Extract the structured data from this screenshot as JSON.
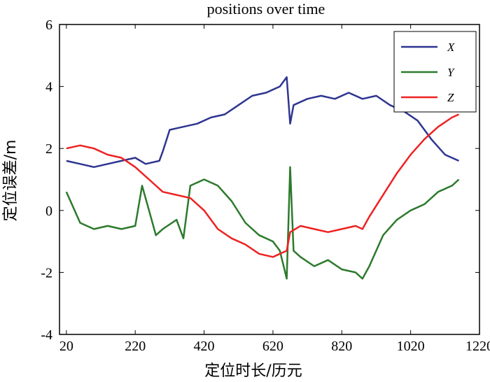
{
  "chart_data": {
    "type": "line",
    "title": "positions over time",
    "xlabel": "定位时长/历元",
    "ylabel": "定位误差/m",
    "xlim": [
      0,
      1220
    ],
    "ylim": [
      -4,
      6
    ],
    "xticks": [
      20,
      220,
      420,
      620,
      820,
      1020,
      1220
    ],
    "yticks": [
      -4,
      -2,
      0,
      2,
      4,
      6
    ],
    "legend_position": "top-right",
    "grid": false,
    "series": [
      {
        "name": "X",
        "color": "#2e3591",
        "x": [
          20,
          60,
          100,
          140,
          180,
          220,
          250,
          290,
          300,
          320,
          360,
          400,
          440,
          480,
          520,
          560,
          600,
          640,
          660,
          670,
          680,
          720,
          760,
          800,
          840,
          880,
          920,
          960,
          1000,
          1040,
          1080,
          1120,
          1160
        ],
        "y": [
          1.6,
          1.5,
          1.4,
          1.5,
          1.6,
          1.7,
          1.5,
          1.6,
          1.9,
          2.6,
          2.7,
          2.8,
          3.0,
          3.1,
          3.4,
          3.7,
          3.8,
          4.0,
          4.3,
          2.8,
          3.4,
          3.6,
          3.7,
          3.6,
          3.8,
          3.6,
          3.7,
          3.4,
          3.2,
          2.9,
          2.3,
          1.8,
          1.6
        ]
      },
      {
        "name": "Y",
        "color": "#2c7a2c",
        "x": [
          20,
          60,
          100,
          140,
          180,
          220,
          240,
          260,
          280,
          300,
          340,
          360,
          380,
          420,
          460,
          500,
          540,
          580,
          620,
          640,
          660,
          670,
          680,
          700,
          740,
          780,
          820,
          860,
          880,
          900,
          940,
          980,
          1020,
          1060,
          1100,
          1140,
          1160
        ],
        "y": [
          0.6,
          -0.4,
          -0.6,
          -0.5,
          -0.6,
          -0.5,
          0.8,
          0.0,
          -0.8,
          -0.6,
          -0.3,
          -0.9,
          0.8,
          1.0,
          0.8,
          0.3,
          -0.4,
          -0.8,
          -1.0,
          -1.3,
          -2.2,
          1.4,
          -1.3,
          -1.5,
          -1.8,
          -1.6,
          -1.9,
          -2.0,
          -2.2,
          -1.8,
          -0.8,
          -0.3,
          0.0,
          0.2,
          0.6,
          0.8,
          1.0
        ]
      },
      {
        "name": "Z",
        "color": "#ee2222",
        "x": [
          20,
          60,
          100,
          140,
          180,
          220,
          260,
          300,
          340,
          380,
          420,
          460,
          500,
          540,
          580,
          620,
          660,
          670,
          700,
          740,
          780,
          820,
          860,
          880,
          900,
          940,
          980,
          1020,
          1060,
          1100,
          1140,
          1160
        ],
        "y": [
          2.0,
          2.1,
          2.0,
          1.8,
          1.7,
          1.4,
          1.0,
          0.6,
          0.5,
          0.4,
          0.0,
          -0.6,
          -0.9,
          -1.1,
          -1.4,
          -1.5,
          -1.3,
          -0.7,
          -0.5,
          -0.6,
          -0.7,
          -0.6,
          -0.5,
          -0.6,
          -0.2,
          0.5,
          1.2,
          1.8,
          2.3,
          2.7,
          3.0,
          3.1
        ]
      }
    ]
  }
}
